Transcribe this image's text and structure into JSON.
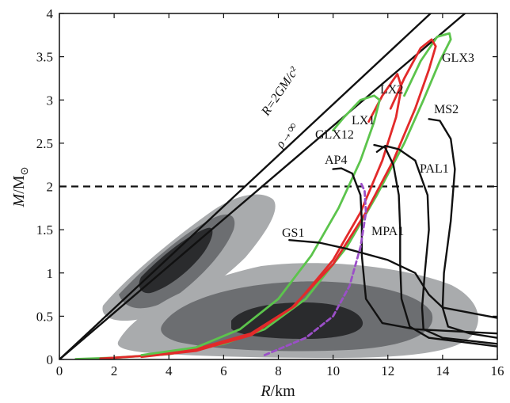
{
  "chart_data": {
    "type": "line",
    "xlabel_main": "R",
    "xlabel_unit": "/km",
    "ylabel_main": "M",
    "ylabel_unit": "/M",
    "ylabel_sub": "⊙",
    "xlim": [
      0,
      16
    ],
    "ylim": [
      0,
      4
    ],
    "xticks": [
      "0",
      "2",
      "4",
      "6",
      "8",
      "10",
      "12",
      "14",
      "16"
    ],
    "yticks": [
      "0",
      "0.5",
      "1",
      "1.5",
      "2",
      "2.5",
      "3",
      "3.5",
      "4"
    ],
    "grid": false,
    "annotations": {
      "schwarzschild": "R=2GM/c²",
      "causality": "ρ→∞"
    },
    "reference_line": {
      "y": 2,
      "style": "dashed"
    },
    "limit_lines": [
      {
        "name": "schwarzschild",
        "slope": 0.295
      },
      {
        "name": "causality",
        "slope": 0.27
      }
    ],
    "contours": [
      {
        "level": "outer",
        "color": "#a9abad"
      },
      {
        "level": "middle",
        "color": "#6c6e71"
      },
      {
        "level": "inner",
        "color": "#2a2b2d"
      }
    ],
    "series": [
      {
        "name": "GLX3",
        "color": "#5cc44c",
        "points": [
          [
            0.6,
            0.005
          ],
          [
            2,
            0.02
          ],
          [
            4,
            0.06
          ],
          [
            6,
            0.18
          ],
          [
            7.5,
            0.35
          ],
          [
            9,
            0.7
          ],
          [
            10.5,
            1.3
          ],
          [
            11.6,
            1.9
          ],
          [
            12.6,
            2.5
          ],
          [
            13.3,
            3.0
          ],
          [
            13.9,
            3.45
          ],
          [
            14.3,
            3.7
          ],
          [
            14.25,
            3.77
          ],
          [
            13.8,
            3.73
          ],
          [
            13.2,
            3.45
          ],
          [
            12.6,
            3.05
          ]
        ]
      },
      {
        "name": "LX2",
        "color": "#e22a2a",
        "points": [
          [
            1.5,
            0.01
          ],
          [
            3,
            0.04
          ],
          [
            5,
            0.12
          ],
          [
            7,
            0.3
          ],
          [
            8.5,
            0.6
          ],
          [
            10,
            1.1
          ],
          [
            11.2,
            1.7
          ],
          [
            12.2,
            2.3
          ],
          [
            13,
            2.9
          ],
          [
            13.5,
            3.35
          ],
          [
            13.75,
            3.62
          ],
          [
            13.6,
            3.7
          ],
          [
            13.2,
            3.6
          ],
          [
            12.6,
            3.25
          ],
          [
            12.1,
            2.9
          ]
        ]
      },
      {
        "name": "LX1",
        "color": "#e22a2a",
        "points": [
          [
            3,
            0.03
          ],
          [
            5,
            0.1
          ],
          [
            7,
            0.28
          ],
          [
            8.6,
            0.62
          ],
          [
            10,
            1.15
          ],
          [
            11,
            1.7
          ],
          [
            11.8,
            2.3
          ],
          [
            12.3,
            2.8
          ],
          [
            12.5,
            3.15
          ],
          [
            12.35,
            3.3
          ],
          [
            11.8,
            3.05
          ],
          [
            11.3,
            2.75
          ]
        ]
      },
      {
        "name": "GLX12",
        "color": "#5cc44c",
        "points": [
          [
            3,
            0.05
          ],
          [
            5,
            0.14
          ],
          [
            6.6,
            0.35
          ],
          [
            8,
            0.7
          ],
          [
            9.2,
            1.2
          ],
          [
            10.2,
            1.75
          ],
          [
            11,
            2.3
          ],
          [
            11.5,
            2.75
          ],
          [
            11.7,
            3.0
          ],
          [
            11.5,
            3.05
          ],
          [
            11.0,
            3.0
          ],
          [
            10.4,
            2.8
          ],
          [
            10,
            2.65
          ]
        ]
      },
      {
        "name": "MS2",
        "color": "#111111",
        "points": [
          [
            16,
            0.25
          ],
          [
            15,
            0.3
          ],
          [
            14.2,
            0.38
          ],
          [
            14.0,
            0.6
          ],
          [
            14.05,
            1.0
          ],
          [
            14.3,
            1.6
          ],
          [
            14.45,
            2.2
          ],
          [
            14.3,
            2.55
          ],
          [
            13.9,
            2.76
          ],
          [
            13.5,
            2.78
          ]
        ]
      },
      {
        "name": "PAL1",
        "color": "#111111",
        "points": [
          [
            16,
            0.18
          ],
          [
            14,
            0.25
          ],
          [
            13.3,
            0.35
          ],
          [
            13.25,
            0.6
          ],
          [
            13.35,
            1.0
          ],
          [
            13.5,
            1.5
          ],
          [
            13.45,
            1.9
          ],
          [
            13.0,
            2.3
          ],
          [
            12.4,
            2.43
          ],
          [
            11.9,
            2.47
          ],
          [
            11.6,
            2.4
          ]
        ]
      },
      {
        "name": "MPA1",
        "color": "#111111",
        "points": [
          [
            16,
            0.15
          ],
          [
            13.5,
            0.25
          ],
          [
            12.8,
            0.38
          ],
          [
            12.5,
            0.7
          ],
          [
            12.45,
            1.1
          ],
          [
            12.45,
            1.5
          ],
          [
            12.4,
            1.9
          ],
          [
            12.2,
            2.25
          ],
          [
            11.9,
            2.45
          ],
          [
            11.5,
            2.48
          ]
        ]
      },
      {
        "name": "AP4",
        "color": "#111111",
        "points": [
          [
            16,
            0.3
          ],
          [
            13,
            0.35
          ],
          [
            11.8,
            0.42
          ],
          [
            11.2,
            0.7
          ],
          [
            11.05,
            1.2
          ],
          [
            11.05,
            1.6
          ],
          [
            11.0,
            1.9
          ],
          [
            10.7,
            2.15
          ],
          [
            10.3,
            2.21
          ],
          [
            10,
            2.2
          ]
        ]
      },
      {
        "name": "GS1",
        "color": "#111111",
        "points": [
          [
            16,
            0.48
          ],
          [
            14,
            0.6
          ],
          [
            13.5,
            0.75
          ],
          [
            13.0,
            1.0
          ],
          [
            12.0,
            1.15
          ],
          [
            10.5,
            1.28
          ],
          [
            9.5,
            1.35
          ],
          [
            8.4,
            1.38
          ]
        ]
      },
      {
        "name": "dashed-purple",
        "color": "#9b4fc8",
        "dashed": true,
        "points": [
          [
            7.5,
            0.05
          ],
          [
            9,
            0.25
          ],
          [
            10,
            0.5
          ],
          [
            10.6,
            0.85
          ],
          [
            11,
            1.3
          ],
          [
            11.2,
            1.7
          ],
          [
            11.15,
            1.95
          ],
          [
            11.0,
            2.05
          ]
        ]
      }
    ]
  }
}
